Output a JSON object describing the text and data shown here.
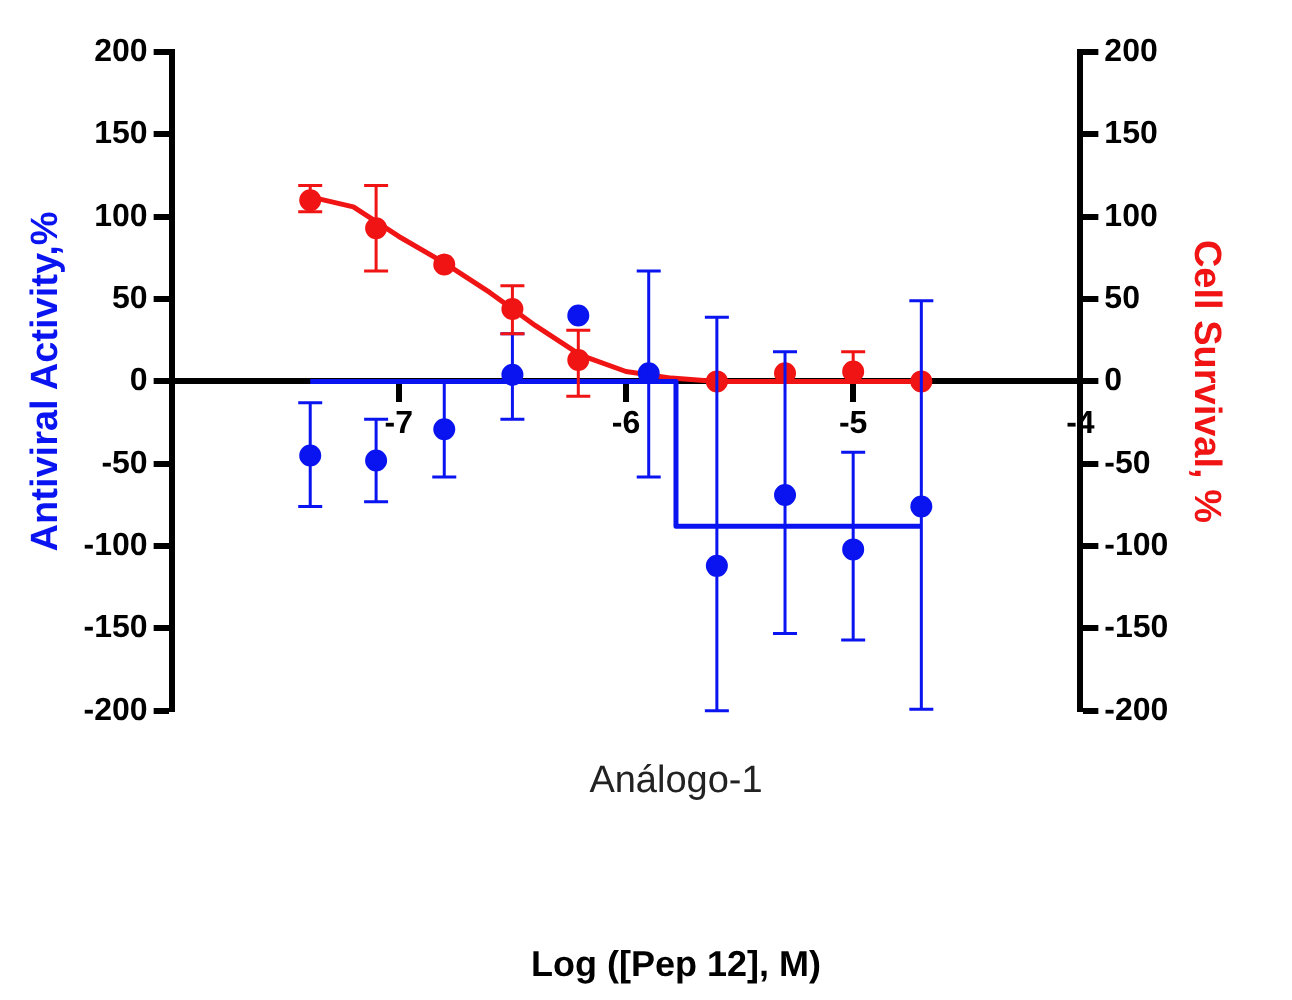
{
  "chart_data": {
    "type": "scatter",
    "ylabel": "Antiviral Activity,%",
    "y2label": "Cell Survival, %",
    "annotations": [
      "Análogo-1",
      "Log ([Pep 12], M)"
    ],
    "xlim": [
      -8,
      -4
    ],
    "xticks": [
      -7,
      -6,
      -5,
      -4
    ],
    "ylim": [
      -200,
      200
    ],
    "yticks": [
      -200,
      -150,
      -100,
      -50,
      0,
      50,
      100,
      150,
      200
    ],
    "y2lim": [
      -200,
      200
    ],
    "y2ticks": [
      -200,
      -150,
      -100,
      -50,
      0,
      50,
      100,
      150,
      200
    ],
    "grid": false,
    "legend": false,
    "marker": "circle",
    "series": [
      {
        "color": "#0a14f0",
        "axis": "y",
        "x": [
          -7.39,
          -7.1,
          -6.8,
          -6.5,
          -6.21,
          -5.9,
          -5.6,
          -5.3,
          -5.0,
          -4.7
        ],
        "values": [
          -45,
          -48,
          -29,
          4,
          40,
          5,
          -112,
          -69,
          -102,
          -76
        ],
        "errors": [
          [
            -76,
            -13
          ],
          [
            -73,
            -23
          ],
          [
            -58,
            0
          ],
          [
            -23,
            29
          ],
          null,
          [
            -58,
            67
          ],
          [
            -200,
            39
          ],
          [
            -153,
            18
          ],
          [
            -157,
            -43
          ],
          [
            -199,
            49
          ]
        ]
      },
      {
        "type": "line",
        "marker": "none",
        "color": "#0a14f0",
        "axis": "y",
        "x": [
          -7.39,
          -5.78,
          -5.78,
          -4.7
        ],
        "values": [
          0,
          0,
          -88,
          -88
        ]
      },
      {
        "color": "#f01414",
        "axis": "y2",
        "x": [
          -7.39,
          -7.1,
          -6.8,
          -6.5,
          -6.21,
          -5.6,
          -5.3,
          -5.0,
          -4.7
        ],
        "values": [
          110,
          93,
          71,
          44,
          13,
          0,
          5,
          6,
          0
        ],
        "errors": [
          [
            103,
            119
          ],
          [
            67,
            119
          ],
          null,
          [
            29,
            58
          ],
          [
            -9,
            31
          ],
          null,
          null,
          [
            0,
            18
          ],
          null
        ]
      },
      {
        "type": "line",
        "marker": "none",
        "color": "#f01414",
        "axis": "y2",
        "x": [
          -7.39,
          -7.2,
          -7.0,
          -6.8,
          -6.6,
          -6.4,
          -6.2,
          -6.0,
          -5.8,
          -5.6,
          -4.7
        ],
        "values": [
          112,
          106,
          88,
          72,
          54,
          34,
          16,
          6,
          2,
          0,
          0
        ]
      }
    ]
  }
}
